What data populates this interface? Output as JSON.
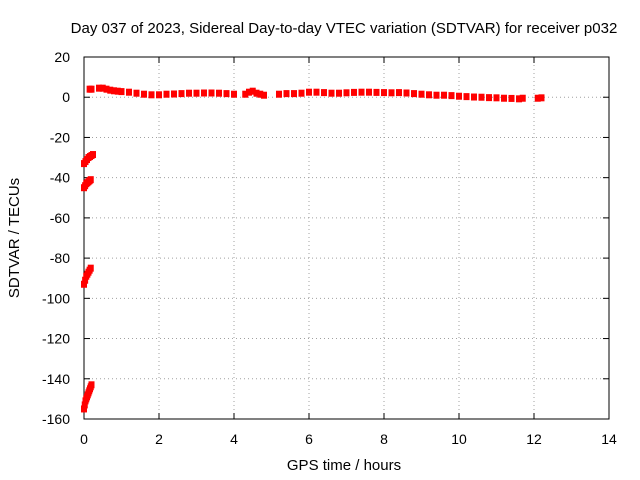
{
  "chart_data": {
    "type": "scatter",
    "title": "Day 037 of 2023, Sidereal Day-to-day VTEC variation (SDTVAR) for receiver p032",
    "xlabel": "GPS time / hours",
    "ylabel": "SDTVAR / TECUs",
    "xlim": [
      0,
      14
    ],
    "ylim": [
      -160,
      20
    ],
    "xticks": [
      0,
      2,
      4,
      6,
      8,
      10,
      12,
      14
    ],
    "yticks": [
      20,
      0,
      -20,
      -40,
      -60,
      -80,
      -100,
      -120,
      -140,
      -160
    ],
    "grid": true,
    "legend": "none",
    "color": "#ff0000",
    "series": [
      {
        "x": [
          0.0,
          0.02,
          0.04,
          0.06,
          0.08,
          0.1,
          0.12,
          0.14,
          0.16,
          0.18,
          0.2,
          0.0,
          0.03,
          0.06,
          0.09,
          0.12,
          0.15,
          0.18,
          0.0,
          0.03,
          0.06,
          0.09,
          0.12,
          0.15,
          0.18,
          0.0,
          0.04,
          0.08,
          0.12,
          0.16,
          0.2,
          0.24,
          0.15,
          0.2,
          0.4,
          0.5,
          0.6,
          0.7,
          0.8,
          0.9,
          1.0,
          1.2,
          1.4,
          1.6,
          1.8,
          2.0,
          2.2,
          2.4,
          2.6,
          2.8,
          3.0,
          3.2,
          3.4,
          3.6,
          3.8,
          4.0,
          4.3,
          4.4,
          4.5,
          4.6,
          4.7,
          4.8,
          5.2,
          5.4,
          5.6,
          5.8,
          6.0,
          6.2,
          6.4,
          6.6,
          6.8,
          7.0,
          7.2,
          7.4,
          7.6,
          7.8,
          8.0,
          8.2,
          8.4,
          8.6,
          8.8,
          9.0,
          9.2,
          9.4,
          9.6,
          9.8,
          10.0,
          10.2,
          10.4,
          10.6,
          10.8,
          11.0,
          11.2,
          11.4,
          11.6,
          11.7,
          12.1,
          12.2
        ],
        "y": [
          -155,
          -153,
          -151,
          -150,
          -149,
          -148,
          -147,
          -146,
          -145,
          -144,
          -143,
          -93,
          -91,
          -89,
          -88,
          -87,
          -86,
          -85,
          -45,
          -44,
          -43,
          -42.5,
          -42,
          -41.5,
          -41,
          -33,
          -32,
          -31,
          -30,
          -29.5,
          -29,
          -28.5,
          4,
          4,
          4.5,
          4.5,
          4,
          3.5,
          3.2,
          3,
          2.8,
          2.5,
          2,
          1.5,
          1.2,
          1.2,
          1.5,
          1.6,
          1.8,
          2,
          2,
          2.1,
          2.1,
          2,
          1.8,
          1.5,
          1.5,
          2.5,
          3,
          2,
          1.5,
          1,
          1.5,
          1.8,
          1.8,
          2,
          2.5,
          2.5,
          2.3,
          2,
          2,
          2.2,
          2.4,
          2.5,
          2.5,
          2.4,
          2.3,
          2.2,
          2.3,
          2.1,
          1.8,
          1.5,
          1.2,
          1,
          1,
          0.8,
          0.5,
          0.3,
          0.1,
          0,
          -0.2,
          -0.3,
          -0.5,
          -0.6,
          -0.8,
          -0.5,
          -0.5,
          -0.3
        ]
      }
    ]
  }
}
